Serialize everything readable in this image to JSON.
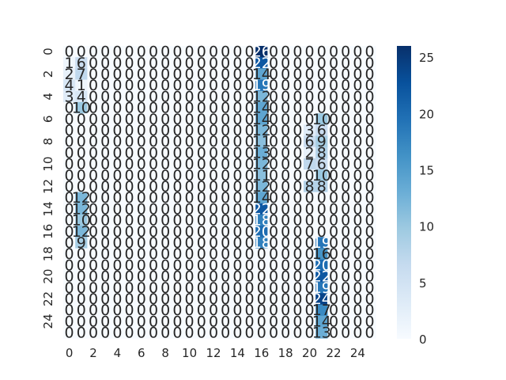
{
  "chart_data": {
    "type": "heatmap",
    "title": "",
    "xlabel": "",
    "ylabel": "",
    "cmap": "Blues",
    "vmin": 0,
    "vmax": 26,
    "x_tick_labels": [
      "0",
      "2",
      "4",
      "6",
      "8",
      "10",
      "12",
      "14",
      "16",
      "18",
      "20",
      "22",
      "24"
    ],
    "y_tick_labels": [
      "0",
      "2",
      "4",
      "6",
      "8",
      "10",
      "12",
      "14",
      "16",
      "18",
      "20",
      "22",
      "24"
    ],
    "colorbar_ticks": [
      "0",
      "5",
      "10",
      "15",
      "20",
      "25"
    ],
    "nonzero_cells": [
      {
        "row": 0,
        "col": 16,
        "value": 26
      },
      {
        "row": 1,
        "col": 0,
        "value": 1
      },
      {
        "row": 1,
        "col": 1,
        "value": 6
      },
      {
        "row": 1,
        "col": 16,
        "value": 22
      },
      {
        "row": 2,
        "col": 0,
        "value": 2
      },
      {
        "row": 2,
        "col": 1,
        "value": 7
      },
      {
        "row": 2,
        "col": 16,
        "value": 14
      },
      {
        "row": 3,
        "col": 0,
        "value": 4
      },
      {
        "row": 3,
        "col": 1,
        "value": 1
      },
      {
        "row": 3,
        "col": 16,
        "value": 19
      },
      {
        "row": 4,
        "col": 0,
        "value": 3
      },
      {
        "row": 4,
        "col": 1,
        "value": 4
      },
      {
        "row": 4,
        "col": 16,
        "value": 12
      },
      {
        "row": 5,
        "col": 1,
        "value": 10
      },
      {
        "row": 5,
        "col": 16,
        "value": 14
      },
      {
        "row": 6,
        "col": 16,
        "value": 14
      },
      {
        "row": 6,
        "col": 21,
        "value": 10
      },
      {
        "row": 7,
        "col": 16,
        "value": 12
      },
      {
        "row": 7,
        "col": 20,
        "value": 3
      },
      {
        "row": 7,
        "col": 21,
        "value": 6
      },
      {
        "row": 8,
        "col": 16,
        "value": 11
      },
      {
        "row": 8,
        "col": 20,
        "value": 6
      },
      {
        "row": 8,
        "col": 21,
        "value": 9
      },
      {
        "row": 9,
        "col": 16,
        "value": 13
      },
      {
        "row": 9,
        "col": 20,
        "value": 2
      },
      {
        "row": 9,
        "col": 21,
        "value": 8
      },
      {
        "row": 10,
        "col": 16,
        "value": 12
      },
      {
        "row": 10,
        "col": 20,
        "value": 7
      },
      {
        "row": 10,
        "col": 21,
        "value": 6
      },
      {
        "row": 11,
        "col": 16,
        "value": 11
      },
      {
        "row": 11,
        "col": 21,
        "value": 10
      },
      {
        "row": 12,
        "col": 16,
        "value": 12
      },
      {
        "row": 12,
        "col": 20,
        "value": 8
      },
      {
        "row": 12,
        "col": 21,
        "value": 8
      },
      {
        "row": 13,
        "col": 1,
        "value": 12
      },
      {
        "row": 13,
        "col": 16,
        "value": 14
      },
      {
        "row": 14,
        "col": 1,
        "value": 12
      },
      {
        "row": 14,
        "col": 16,
        "value": 22
      },
      {
        "row": 15,
        "col": 1,
        "value": 10
      },
      {
        "row": 15,
        "col": 16,
        "value": 18
      },
      {
        "row": 16,
        "col": 1,
        "value": 12
      },
      {
        "row": 16,
        "col": 16,
        "value": 20
      },
      {
        "row": 17,
        "col": 1,
        "value": 9
      },
      {
        "row": 17,
        "col": 16,
        "value": 18
      },
      {
        "row": 17,
        "col": 21,
        "value": 19
      },
      {
        "row": 18,
        "col": 21,
        "value": 16
      },
      {
        "row": 19,
        "col": 21,
        "value": 20
      },
      {
        "row": 20,
        "col": 21,
        "value": 22
      },
      {
        "row": 21,
        "col": 21,
        "value": 19
      },
      {
        "row": 22,
        "col": 21,
        "value": 24
      },
      {
        "row": 23,
        "col": 21,
        "value": 17
      },
      {
        "row": 24,
        "col": 21,
        "value": 14
      },
      {
        "row": 25,
        "col": 21,
        "value": 13
      }
    ],
    "grid": false,
    "colorbar": "right"
  }
}
